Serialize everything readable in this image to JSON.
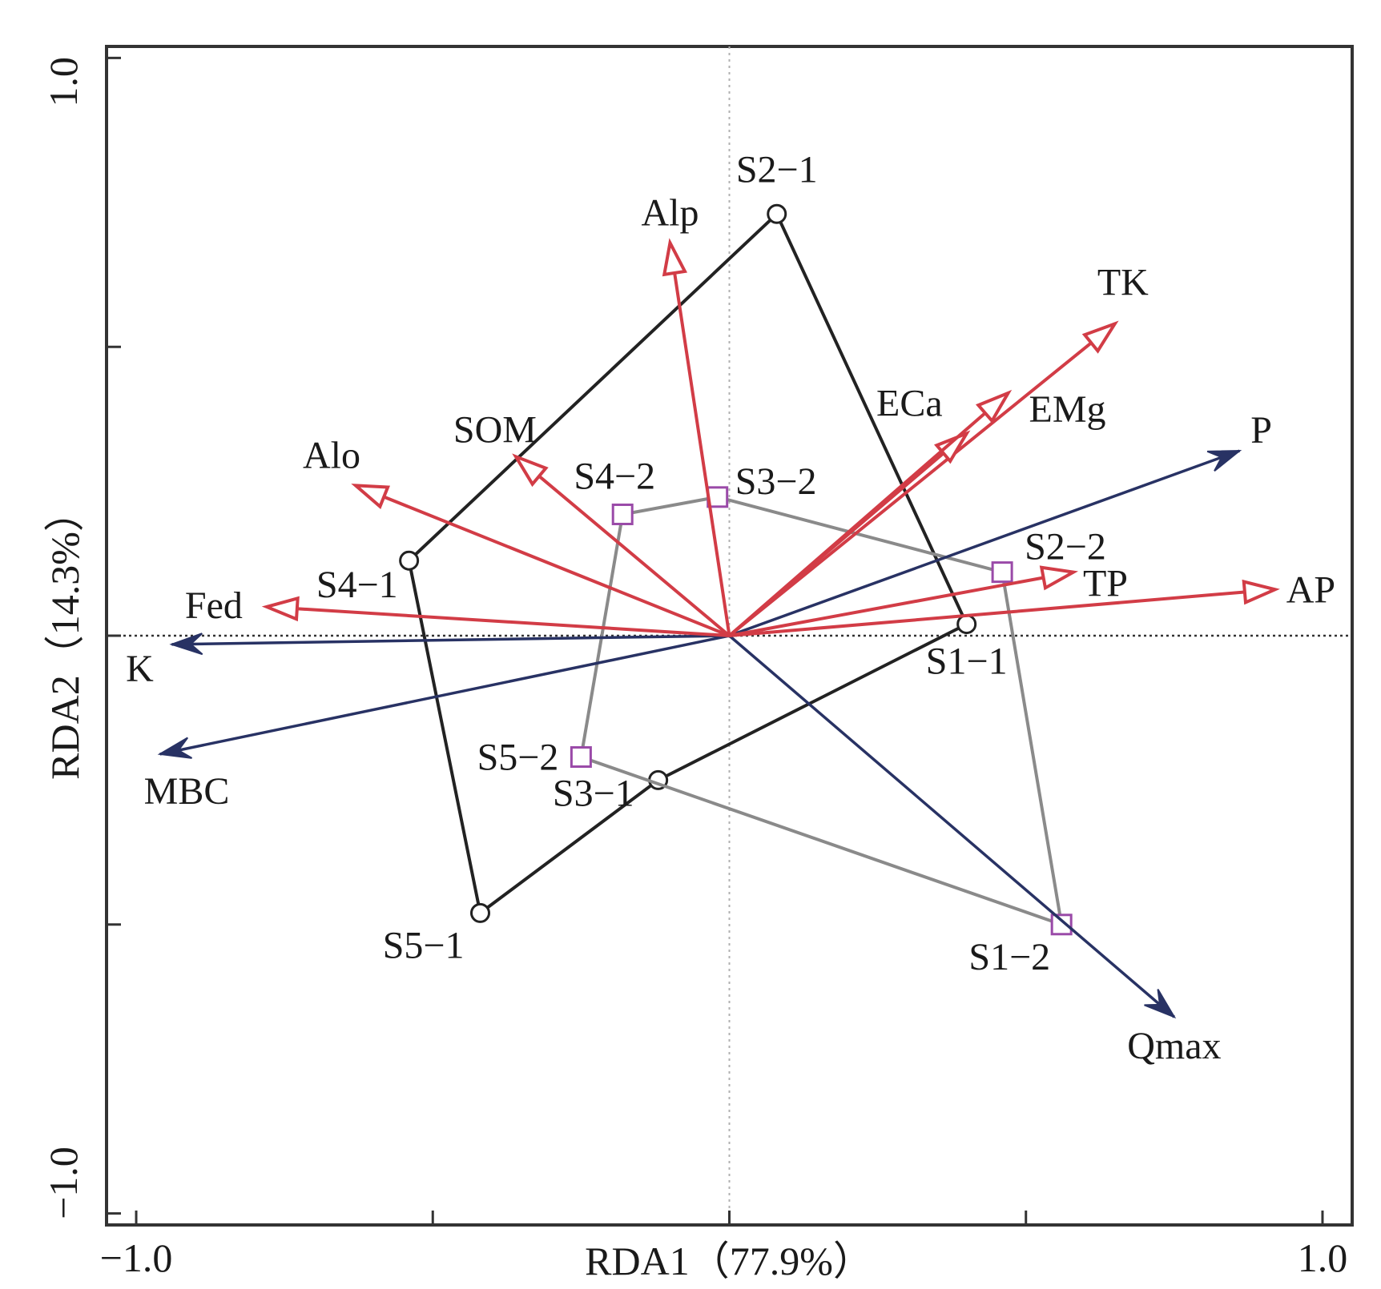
{
  "chart_data": {
    "type": "scatter",
    "subtype": "rda-biplot",
    "title": "",
    "xlabel": "RDA1（77.9%）",
    "ylabel": "RDA2（14.3%）",
    "xlim": [
      -1.05,
      1.05
    ],
    "ylim": [
      -1.02,
      1.02
    ],
    "x_tick_labels": [
      {
        "value": -1.0,
        "label": "−1.0"
      },
      {
        "value": 1.0,
        "label": "1.0"
      }
    ],
    "y_tick_labels": [
      {
        "value": 1.0,
        "label": "1.0"
      },
      {
        "value": -1.0,
        "label": "−1.0"
      }
    ],
    "x_ticks": [
      -1.0,
      -0.5,
      0,
      0.5,
      1.0
    ],
    "y_ticks": [
      -1.0,
      -0.5,
      0,
      0.5,
      1.0
    ],
    "colors": {
      "explanatory": "#d23c46",
      "response": "#283264",
      "group1_outline": "#222222",
      "group2_outline": "#8a8a8a",
      "square_marker": "#9a4aa8",
      "circle_marker": "#222222"
    },
    "explanatory_vectors": [
      {
        "name": "Alp",
        "x": -0.1,
        "y": 0.68
      },
      {
        "name": "TK",
        "x": 0.65,
        "y": 0.54
      },
      {
        "name": "ECa",
        "x": 0.4,
        "y": 0.35
      },
      {
        "name": "EMg",
        "x": 0.47,
        "y": 0.42
      },
      {
        "name": "SOM",
        "x": -0.36,
        "y": 0.31
      },
      {
        "name": "Alo",
        "x": -0.63,
        "y": 0.26
      },
      {
        "name": "Fed",
        "x": -0.78,
        "y": 0.05
      },
      {
        "name": "TP",
        "x": 0.58,
        "y": 0.11
      },
      {
        "name": "AP",
        "x": 0.92,
        "y": 0.08
      }
    ],
    "response_vectors": [
      {
        "name": "P",
        "x": 0.86,
        "y": 0.32
      },
      {
        "name": "K",
        "x": -0.94,
        "y": -0.015
      },
      {
        "name": "MBC",
        "x": -0.96,
        "y": -0.205
      },
      {
        "name": "Qmax",
        "x": 0.75,
        "y": -0.66
      }
    ],
    "groups": [
      {
        "marker": "circle",
        "order": [
          "S2-1",
          "S1-1",
          "S3-1",
          "S5-1",
          "S4-1"
        ],
        "points": [
          {
            "name": "S2−1",
            "x": 0.08,
            "y": 0.73
          },
          {
            "name": "S1−1",
            "x": 0.4,
            "y": 0.02
          },
          {
            "name": "S3−1",
            "x": -0.12,
            "y": -0.25
          },
          {
            "name": "S5−1",
            "x": -0.42,
            "y": -0.48
          },
          {
            "name": "S4−1",
            "x": -0.54,
            "y": 0.13
          }
        ]
      },
      {
        "marker": "square",
        "order": [
          "S3-2",
          "S2-2",
          "S1-2",
          "S5-2",
          "S4-2"
        ],
        "points": [
          {
            "name": "S3−2",
            "x": -0.02,
            "y": 0.24
          },
          {
            "name": "S2−2",
            "x": 0.46,
            "y": 0.11
          },
          {
            "name": "S1−2",
            "x": 0.56,
            "y": -0.5
          },
          {
            "name": "S5−2",
            "x": -0.25,
            "y": -0.21
          },
          {
            "name": "S4−2",
            "x": -0.18,
            "y": 0.21
          }
        ]
      }
    ]
  }
}
